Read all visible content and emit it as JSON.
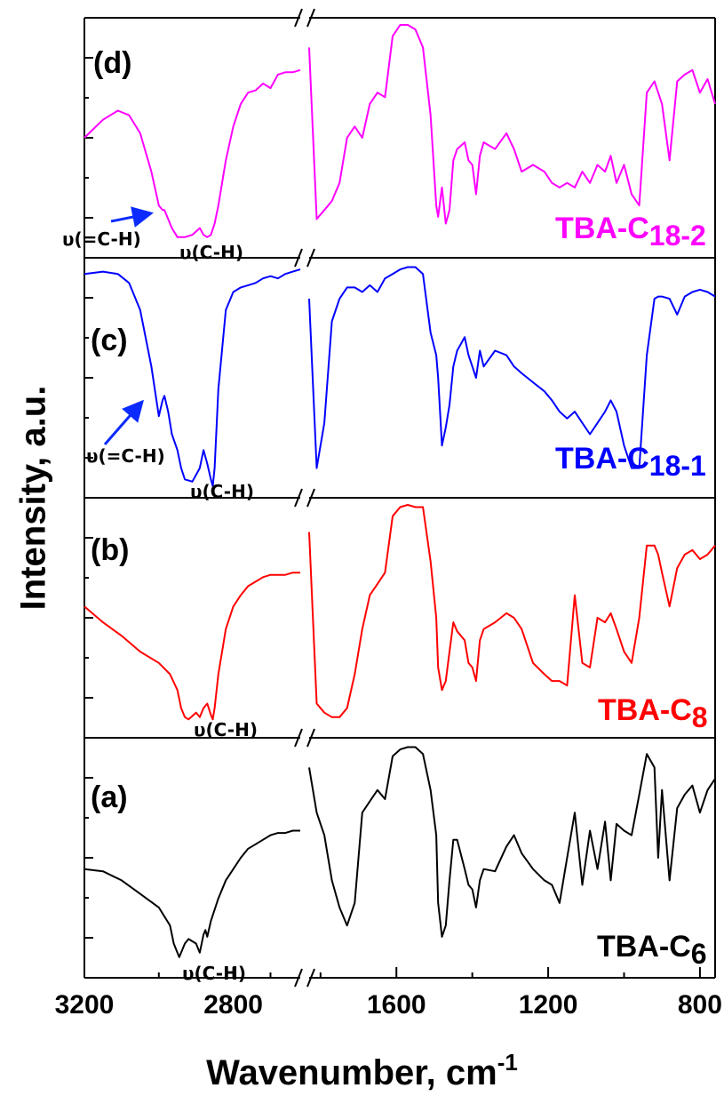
{
  "chart_data": {
    "type": "line",
    "xlabel": "Wavenumber, cm",
    "xlabel_sup": "-1",
    "ylabel": "Intensity, a.u.",
    "axis_breaks": {
      "left_segment": [
        3200,
        2620
      ],
      "right_segment": [
        1830,
        760
      ]
    },
    "x_ticks": [
      3200,
      2800,
      1600,
      1200,
      800
    ],
    "grid": false,
    "panels": [
      {
        "id": "d",
        "letter": "(d)",
        "name": "TBA-C",
        "name_sub": "18-2",
        "color": "#ff00ff",
        "annotations": [
          "υ(=C-H)",
          "υ(C-H)"
        ],
        "left": {
          "x": [
            3200,
            3150,
            3110,
            3080,
            3050,
            3020,
            3000,
            2990,
            2985,
            2975,
            2965,
            2950,
            2930,
            2910,
            2890,
            2880,
            2870,
            2860,
            2850,
            2840,
            2820,
            2800,
            2780,
            2760,
            2740,
            2720,
            2700,
            2680,
            2660,
            2640,
            2620
          ],
          "y": [
            0.5,
            0.58,
            0.62,
            0.6,
            0.52,
            0.35,
            0.2,
            0.18,
            0.18,
            0.14,
            0.1,
            0.06,
            0.06,
            0.07,
            0.1,
            0.07,
            0.06,
            0.07,
            0.12,
            0.2,
            0.4,
            0.55,
            0.65,
            0.7,
            0.71,
            0.74,
            0.72,
            0.78,
            0.79,
            0.79,
            0.8
          ]
        },
        "right": {
          "x": [
            1830,
            1810,
            1790,
            1770,
            1750,
            1730,
            1710,
            1690,
            1670,
            1650,
            1630,
            1610,
            1590,
            1570,
            1550,
            1530,
            1510,
            1495,
            1490,
            1480,
            1470,
            1460,
            1450,
            1440,
            1420,
            1410,
            1400,
            1390,
            1380,
            1370,
            1340,
            1310,
            1290,
            1270,
            1240,
            1210,
            1190,
            1170,
            1150,
            1130,
            1110,
            1090,
            1070,
            1050,
            1035,
            1020,
            1000,
            980,
            960,
            940,
            920,
            910,
            900,
            880,
            860,
            840,
            820,
            800,
            780,
            760
          ],
          "y": [
            0.9,
            0.14,
            0.18,
            0.22,
            0.3,
            0.5,
            0.55,
            0.5,
            0.65,
            0.7,
            0.68,
            0.95,
            1.0,
            1.0,
            0.98,
            0.9,
            0.6,
            0.2,
            0.15,
            0.28,
            0.12,
            0.18,
            0.4,
            0.45,
            0.48,
            0.4,
            0.38,
            0.25,
            0.42,
            0.48,
            0.45,
            0.52,
            0.45,
            0.35,
            0.38,
            0.35,
            0.3,
            0.28,
            0.3,
            0.28,
            0.35,
            0.3,
            0.38,
            0.35,
            0.42,
            0.3,
            0.38,
            0.25,
            0.2,
            0.7,
            0.75,
            0.7,
            0.65,
            0.4,
            0.75,
            0.78,
            0.8,
            0.7,
            0.76,
            0.65
          ]
        }
      },
      {
        "id": "c",
        "letter": "(c)",
        "name": "TBA-C",
        "name_sub": "18-1",
        "color": "#0000ff",
        "annotations": [
          "υ(=C-H)",
          "υ(C-H)"
        ],
        "left": {
          "x": [
            3200,
            3150,
            3110,
            3080,
            3050,
            3020,
            3000,
            2990,
            2985,
            2975,
            2965,
            2950,
            2940,
            2930,
            2910,
            2890,
            2880,
            2870,
            2860,
            2855,
            2850,
            2840,
            2820,
            2800,
            2780,
            2760,
            2740,
            2720,
            2700,
            2680,
            2660,
            2640,
            2620
          ],
          "y": [
            0.96,
            0.97,
            0.96,
            0.92,
            0.8,
            0.55,
            0.33,
            0.4,
            0.42,
            0.35,
            0.25,
            0.18,
            0.1,
            0.05,
            0.04,
            0.1,
            0.18,
            0.12,
            0.05,
            0.02,
            0.1,
            0.45,
            0.8,
            0.88,
            0.9,
            0.91,
            0.92,
            0.94,
            0.95,
            0.94,
            0.96,
            0.97,
            0.98
          ]
        },
        "right": {
          "x": [
            1830,
            1810,
            1790,
            1770,
            1750,
            1730,
            1710,
            1690,
            1670,
            1650,
            1630,
            1610,
            1590,
            1570,
            1550,
            1530,
            1510,
            1495,
            1490,
            1480,
            1470,
            1460,
            1450,
            1440,
            1420,
            1410,
            1400,
            1390,
            1380,
            1370,
            1340,
            1310,
            1290,
            1270,
            1240,
            1210,
            1190,
            1170,
            1150,
            1130,
            1110,
            1090,
            1070,
            1050,
            1035,
            1020,
            1000,
            980,
            960,
            940,
            920,
            910,
            900,
            880,
            860,
            840,
            820,
            800,
            780,
            760
          ],
          "y": [
            0.85,
            0.1,
            0.3,
            0.75,
            0.85,
            0.9,
            0.9,
            0.88,
            0.91,
            0.88,
            0.94,
            0.96,
            0.98,
            0.99,
            0.99,
            0.96,
            0.7,
            0.6,
            0.5,
            0.2,
            0.28,
            0.38,
            0.55,
            0.62,
            0.68,
            0.6,
            0.55,
            0.5,
            0.62,
            0.55,
            0.62,
            0.6,
            0.55,
            0.52,
            0.48,
            0.44,
            0.4,
            0.35,
            0.32,
            0.35,
            0.3,
            0.25,
            0.3,
            0.35,
            0.4,
            0.35,
            0.2,
            0.1,
            0.1,
            0.6,
            0.85,
            0.86,
            0.86,
            0.85,
            0.78,
            0.86,
            0.88,
            0.89,
            0.88,
            0.86
          ]
        }
      },
      {
        "id": "b",
        "letter": "(b)",
        "name": "TBA-C",
        "name_sub": "8",
        "color": "#ff0000",
        "annotations": [
          "υ(C-H)"
        ],
        "left": {
          "x": [
            3200,
            3150,
            3100,
            3050,
            3000,
            2970,
            2950,
            2940,
            2930,
            2920,
            2900,
            2890,
            2880,
            2870,
            2860,
            2855,
            2850,
            2840,
            2820,
            2800,
            2780,
            2760,
            2740,
            2720,
            2700,
            2680,
            2660,
            2640,
            2620
          ],
          "y": [
            0.55,
            0.48,
            0.42,
            0.35,
            0.3,
            0.25,
            0.18,
            0.1,
            0.06,
            0.05,
            0.08,
            0.06,
            0.1,
            0.12,
            0.07,
            0.05,
            0.1,
            0.25,
            0.45,
            0.55,
            0.6,
            0.64,
            0.66,
            0.68,
            0.69,
            0.69,
            0.69,
            0.7,
            0.7
          ]
        },
        "right": {
          "x": [
            1830,
            1810,
            1790,
            1770,
            1750,
            1730,
            1710,
            1690,
            1670,
            1650,
            1630,
            1610,
            1590,
            1570,
            1550,
            1530,
            1510,
            1495,
            1490,
            1480,
            1470,
            1460,
            1450,
            1440,
            1420,
            1410,
            1400,
            1390,
            1380,
            1370,
            1340,
            1310,
            1290,
            1270,
            1240,
            1210,
            1190,
            1170,
            1150,
            1130,
            1110,
            1090,
            1070,
            1050,
            1035,
            1020,
            1000,
            980,
            960,
            940,
            920,
            910,
            900,
            880,
            860,
            840,
            820,
            800,
            780,
            760
          ],
          "y": [
            0.88,
            0.12,
            0.08,
            0.06,
            0.06,
            0.1,
            0.25,
            0.45,
            0.6,
            0.65,
            0.7,
            0.95,
            0.99,
            1.0,
            0.99,
            0.99,
            0.75,
            0.5,
            0.28,
            0.18,
            0.22,
            0.35,
            0.48,
            0.44,
            0.4,
            0.3,
            0.28,
            0.22,
            0.4,
            0.45,
            0.48,
            0.52,
            0.5,
            0.45,
            0.3,
            0.25,
            0.22,
            0.22,
            0.2,
            0.6,
            0.3,
            0.28,
            0.5,
            0.48,
            0.52,
            0.45,
            0.35,
            0.3,
            0.5,
            0.82,
            0.82,
            0.78,
            0.7,
            0.55,
            0.72,
            0.78,
            0.8,
            0.76,
            0.78,
            0.82
          ]
        }
      },
      {
        "id": "a",
        "letter": "(a)",
        "name": "TBA-C",
        "name_sub": "6",
        "color": "#000000",
        "annotations": [
          "υ(C-H)"
        ],
        "left": {
          "x": [
            3200,
            3150,
            3100,
            3050,
            3000,
            2970,
            2960,
            2950,
            2945,
            2930,
            2920,
            2900,
            2890,
            2880,
            2875,
            2870,
            2860,
            2840,
            2820,
            2800,
            2780,
            2760,
            2740,
            2720,
            2700,
            2680,
            2660,
            2640,
            2620
          ],
          "y": [
            0.45,
            0.44,
            0.4,
            0.34,
            0.28,
            0.2,
            0.12,
            0.08,
            0.06,
            0.12,
            0.14,
            0.12,
            0.08,
            0.16,
            0.18,
            0.15,
            0.22,
            0.32,
            0.4,
            0.45,
            0.5,
            0.54,
            0.56,
            0.58,
            0.6,
            0.61,
            0.61,
            0.62,
            0.62
          ]
        },
        "right": {
          "x": [
            1830,
            1810,
            1790,
            1770,
            1750,
            1730,
            1710,
            1690,
            1670,
            1650,
            1630,
            1610,
            1590,
            1570,
            1550,
            1530,
            1510,
            1495,
            1490,
            1480,
            1470,
            1460,
            1450,
            1440,
            1420,
            1410,
            1400,
            1390,
            1380,
            1370,
            1340,
            1310,
            1290,
            1270,
            1240,
            1210,
            1190,
            1170,
            1150,
            1130,
            1110,
            1090,
            1070,
            1050,
            1035,
            1020,
            1000,
            980,
            960,
            940,
            920,
            910,
            900,
            880,
            860,
            840,
            820,
            800,
            780,
            760
          ],
          "y": [
            0.9,
            0.7,
            0.6,
            0.4,
            0.28,
            0.2,
            0.3,
            0.7,
            0.75,
            0.8,
            0.76,
            0.95,
            0.98,
            0.99,
            0.99,
            0.96,
            0.8,
            0.6,
            0.3,
            0.15,
            0.2,
            0.4,
            0.58,
            0.58,
            0.45,
            0.38,
            0.36,
            0.28,
            0.4,
            0.45,
            0.44,
            0.55,
            0.6,
            0.52,
            0.45,
            0.4,
            0.38,
            0.3,
            0.5,
            0.7,
            0.38,
            0.62,
            0.45,
            0.66,
            0.4,
            0.65,
            0.62,
            0.6,
            0.78,
            0.96,
            0.9,
            0.5,
            0.8,
            0.4,
            0.72,
            0.78,
            0.82,
            0.7,
            0.8,
            0.85
          ]
        }
      }
    ]
  }
}
